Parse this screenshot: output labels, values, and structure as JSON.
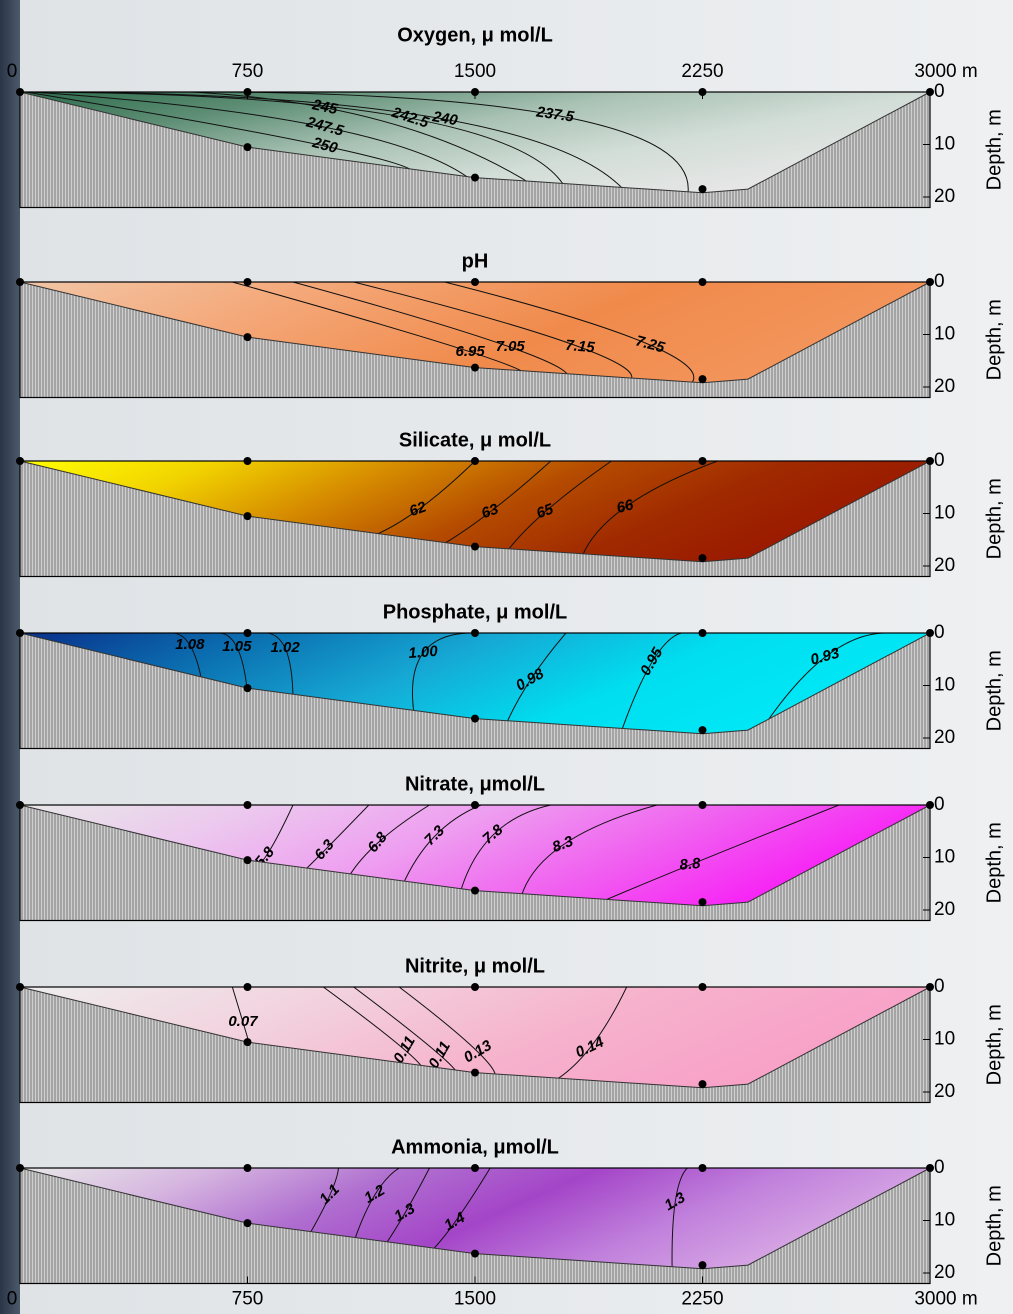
{
  "bathymetry": {
    "x": [
      0,
      750,
      1500,
      2250,
      2400,
      3000
    ],
    "depth": [
      0,
      10.5,
      16.3,
      19.2,
      18.5,
      0
    ]
  },
  "stations": {
    "x": [
      0,
      750,
      1500,
      2250,
      3000
    ]
  },
  "samples": {
    "x": [
      750,
      1500,
      2250
    ],
    "depth": [
      10.5,
      16.3,
      18.5
    ]
  },
  "chart_data": [
    {
      "type": "contour",
      "title": "Oxygen, μ mol/L",
      "levels": [
        237.5,
        240,
        242.5,
        245,
        247.5,
        250
      ],
      "colors": [
        "#2d6b4b",
        "#5f8f76",
        "#a9c2b4",
        "#d3ded8",
        "#e6e6e6"
      ],
      "xlim": [
        0,
        3000
      ],
      "ylim": [
        0,
        22
      ],
      "yticks": [
        0,
        10,
        20
      ],
      "ylabel": "Depth, m",
      "xticks": [
        0,
        750,
        1500,
        2250,
        {
          "value": 3000,
          "label": "3000 m"
        }
      ]
    },
    {
      "type": "contour",
      "title": "pH",
      "levels": [
        6.95,
        7.05,
        7.15,
        7.25
      ],
      "colors": [
        "#f2c6a6",
        "#f4a676",
        "#f08a4b",
        "#f3955c"
      ],
      "xlim": [
        0,
        3000
      ],
      "ylim": [
        0,
        22
      ],
      "yticks": [
        0,
        10,
        20
      ],
      "ylabel": "Depth, m"
    },
    {
      "type": "contour",
      "title": "Silicate, μ mol/L",
      "levels": [
        62,
        63,
        65,
        66
      ],
      "colors": [
        "#ffff00",
        "#f2d400",
        "#d68c00",
        "#b54c00",
        "#a02a00",
        "#9a1800"
      ],
      "xlim": [
        0,
        3000
      ],
      "ylim": [
        0,
        22
      ],
      "yticks": [
        0,
        10,
        20
      ],
      "ylabel": "Depth, m"
    },
    {
      "type": "contour",
      "title": "Phosphate, μ mol/L",
      "levels": [
        1.08,
        1.05,
        1.02,
        1.0,
        0.98,
        0.95,
        0.93
      ],
      "level_labels": [
        "1.08",
        "1.05",
        "1.02",
        "1.00",
        "0.98",
        "0.95",
        "0.93"
      ],
      "colors": [
        "#0a2f8a",
        "#0b6fb0",
        "#16a8d4",
        "#00def0",
        "#00e8f6"
      ],
      "xlim": [
        0,
        3000
      ],
      "ylim": [
        0,
        22
      ],
      "yticks": [
        0,
        10,
        20
      ],
      "ylabel": "Depth, m"
    },
    {
      "type": "contour",
      "title": "Nitrate, μmol/L",
      "levels": [
        5.8,
        6.3,
        6.8,
        7.3,
        7.8,
        8.3,
        8.8
      ],
      "colors": [
        "#e8e8e8",
        "#ecc8ee",
        "#ee9ef0",
        "#f060f0",
        "#f81ef6"
      ],
      "xlim": [
        0,
        3000
      ],
      "ylim": [
        0,
        22
      ],
      "yticks": [
        0,
        10,
        20
      ],
      "ylabel": "Depth, m"
    },
    {
      "type": "contour",
      "title": "Nitrite, μ mol/L",
      "levels": [
        0.07,
        0.11,
        0.11,
        0.13,
        0.14
      ],
      "colors": [
        "#eeeeee",
        "#f2d2de",
        "#f6b2cc",
        "#f8a0c8"
      ],
      "xlim": [
        0,
        3000
      ],
      "ylim": [
        0,
        22
      ],
      "yticks": [
        0,
        10,
        20
      ],
      "ylabel": "Depth, m"
    },
    {
      "type": "contour",
      "title": "Ammonia, μmol/L",
      "levels": [
        1.1,
        1.2,
        1.3,
        1.4,
        1.3
      ],
      "colors": [
        "#e8e8e8",
        "#d6b6e0",
        "#b070d0",
        "#a445c8",
        "#c080dc",
        "#d8a8e4"
      ],
      "xlim": [
        0,
        3000
      ],
      "ylim": [
        0,
        22
      ],
      "yticks": [
        0,
        10,
        20
      ],
      "ylabel": "Depth, m",
      "xticks": [
        0,
        750,
        1500,
        2250,
        {
          "value": 3000,
          "label": "3000 m"
        }
      ]
    }
  ]
}
